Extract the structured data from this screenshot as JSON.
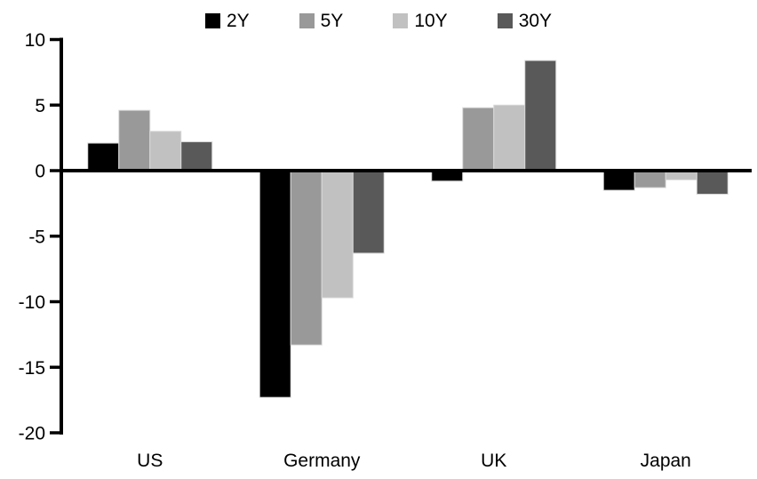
{
  "chart_data": {
    "type": "bar",
    "title": "",
    "xlabel": "",
    "ylabel": "",
    "categories": [
      "US",
      "Germany",
      "UK",
      "Japan"
    ],
    "series": [
      {
        "name": "2Y",
        "color": "#000000",
        "values": [
          2.1,
          -17.3,
          -0.8,
          -1.5
        ]
      },
      {
        "name": "5Y",
        "color": "#999999",
        "values": [
          4.6,
          -13.3,
          4.8,
          -1.3
        ]
      },
      {
        "name": "10Y",
        "color": "#c1c1c1",
        "values": [
          3.0,
          -9.7,
          5.0,
          -0.7
        ]
      },
      {
        "name": "30Y",
        "color": "#595959",
        "values": [
          2.2,
          -6.3,
          8.4,
          -1.8
        ]
      }
    ],
    "ylim": [
      -20,
      10
    ],
    "yticks": [
      10,
      5,
      0,
      -5,
      -10,
      -15,
      -20
    ],
    "grid": false,
    "legend_position": "top",
    "axis_color": "#000000",
    "bar_outline_color": "#d9d9d9",
    "background": "#ffffff"
  }
}
